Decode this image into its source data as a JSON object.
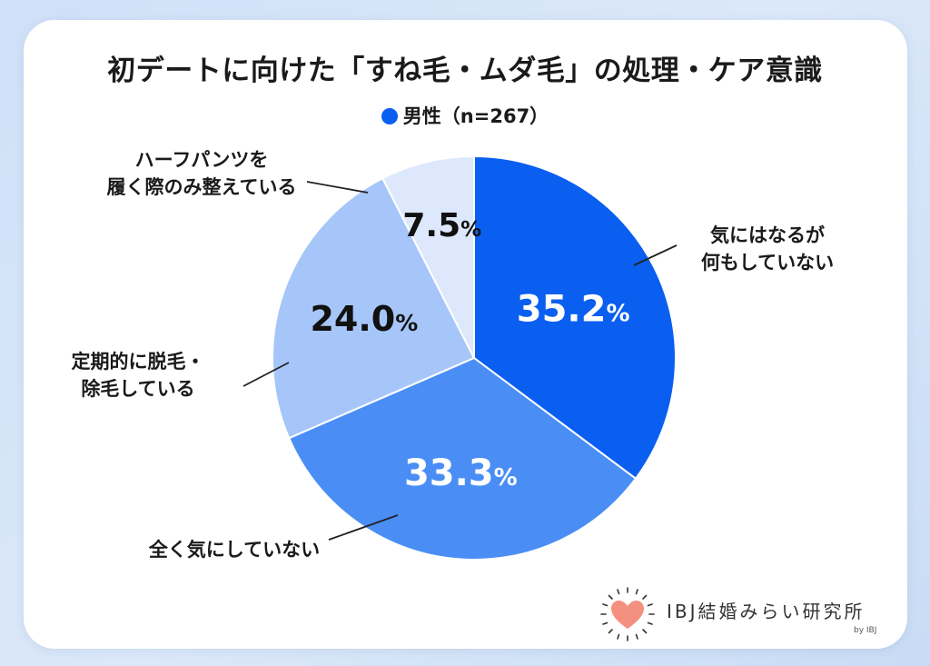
{
  "title": "初デートに向けた「すね毛・ムダ毛」の処理・ケア意識",
  "legend": {
    "label": "男性（n=267）",
    "color": "#0a5ff0"
  },
  "chart_data": {
    "type": "pie",
    "title": "初デートに向けた「すね毛・ムダ毛」の処理・ケア意識",
    "series_name": "男性（n=267）",
    "unit": "%",
    "slices": [
      {
        "label_lines": [
          "気にはなるが",
          "何もしていない"
        ],
        "value": 35.2,
        "value_text": "35.2",
        "color": "#0a5ff0",
        "text_color": "#ffffff"
      },
      {
        "label_lines": [
          "全く気にしていない"
        ],
        "value": 33.3,
        "value_text": "33.3",
        "color": "#4a8ef5",
        "text_color": "#ffffff"
      },
      {
        "label_lines": [
          "定期的に脱毛・",
          "除毛している"
        ],
        "value": 24.0,
        "value_text": "24.0",
        "color": "#a6c6f9",
        "text_color": "#111111"
      },
      {
        "label_lines": [
          "ハーフパンツを",
          "履く際のみ整えている"
        ],
        "value": 7.5,
        "value_text": "7.5",
        "color": "#dde8fc",
        "text_color": "#111111"
      }
    ]
  },
  "brand": {
    "name": "IBJ結婚みらい研究所",
    "by": "by IBJ",
    "heart_color": "#f4907f"
  }
}
